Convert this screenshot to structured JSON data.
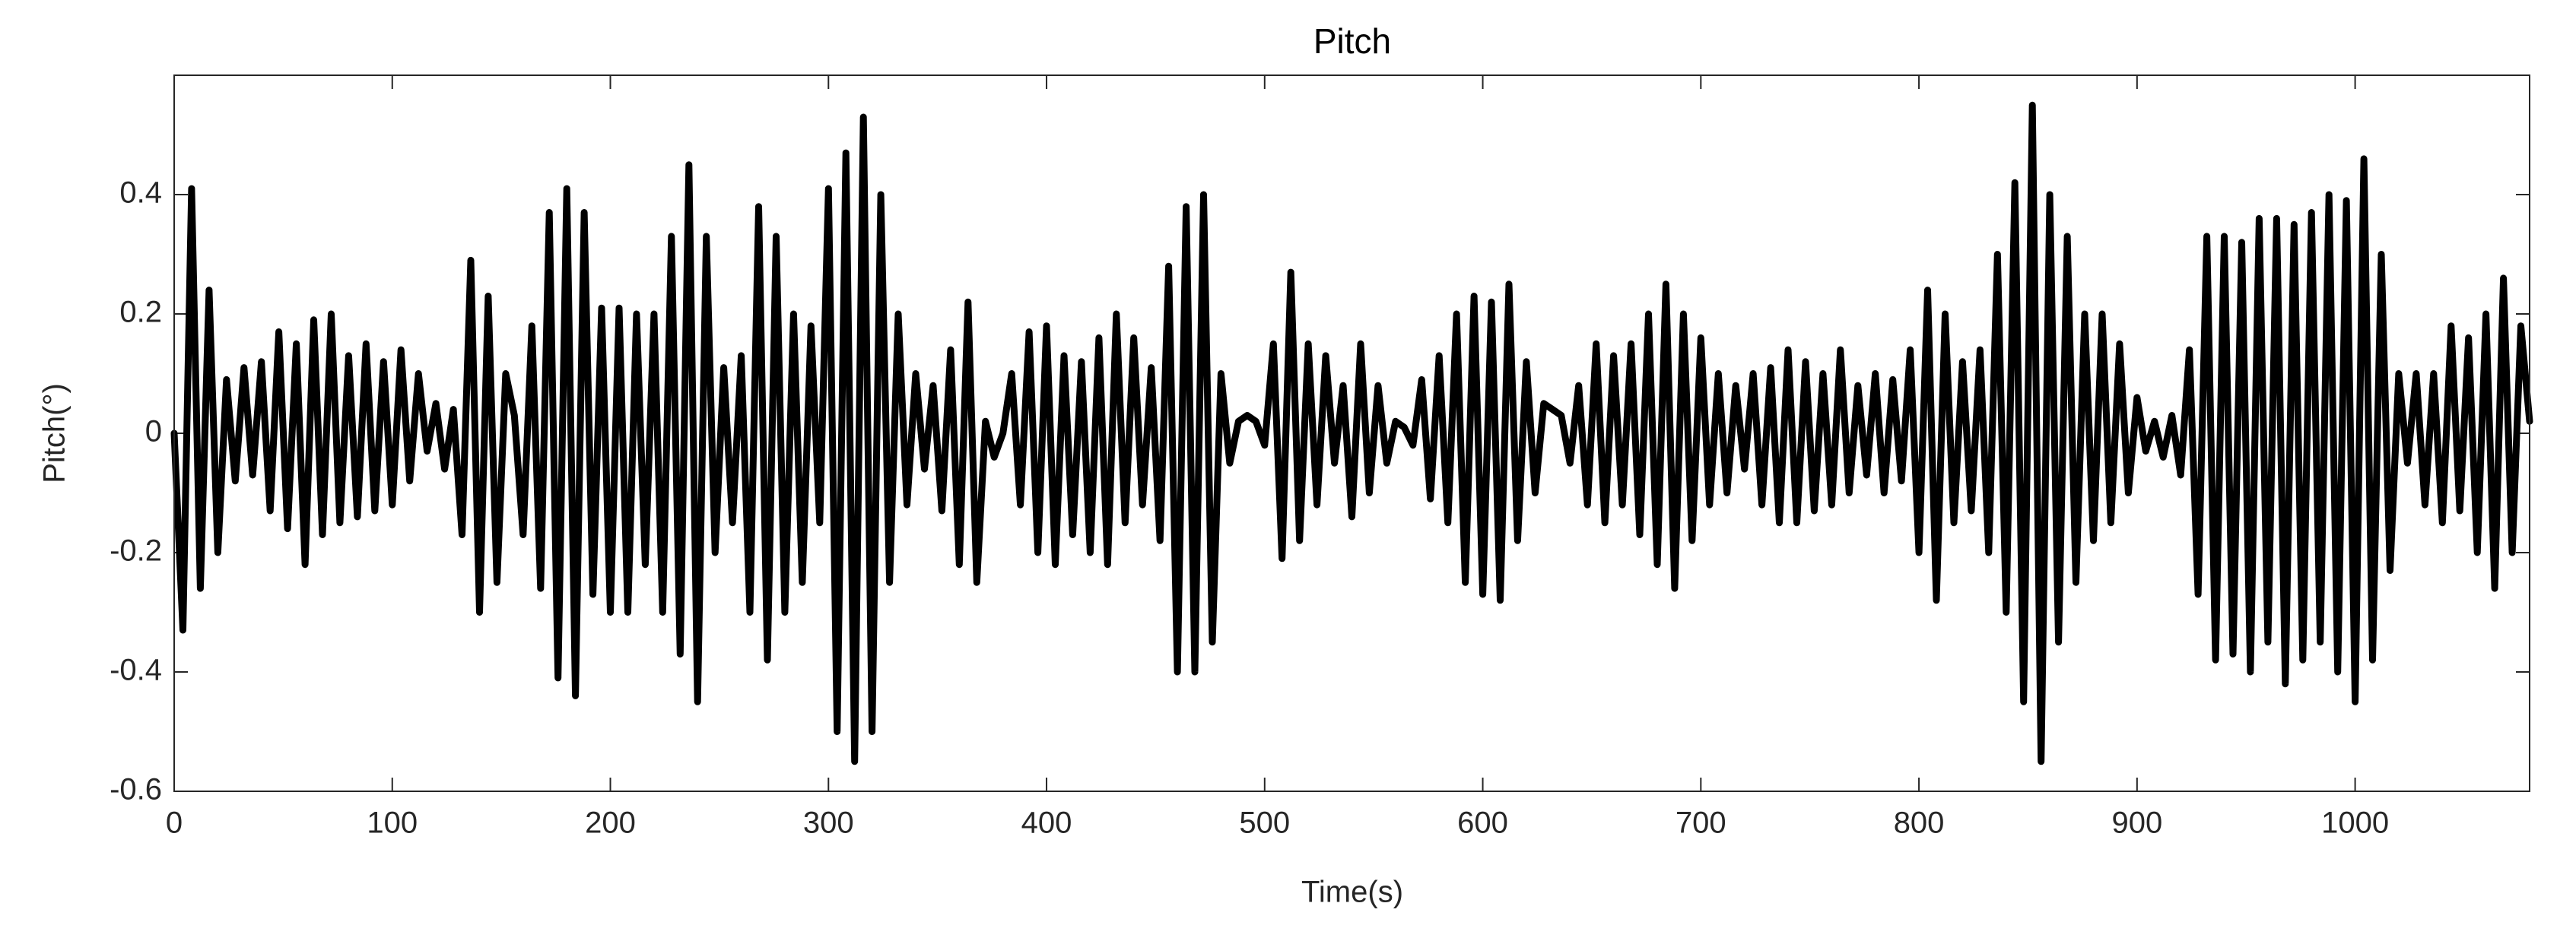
{
  "chart_data": {
    "type": "line",
    "title": "Pitch",
    "xlabel": "Time(s)",
    "ylabel": "Pitch(°)",
    "color": "#000000",
    "xlim": [
      0,
      1080
    ],
    "ylim": [
      -0.6,
      0.6
    ],
    "xticks": [
      0,
      100,
      200,
      300,
      400,
      500,
      600,
      700,
      800,
      900,
      1000
    ],
    "yticks": [
      -0.6,
      -0.4,
      -0.2,
      0,
      0.2,
      0.4
    ],
    "x": [
      0,
      4,
      8,
      12,
      16,
      20,
      24,
      28,
      32,
      36,
      40,
      44,
      48,
      52,
      56,
      60,
      64,
      68,
      72,
      76,
      80,
      84,
      88,
      92,
      96,
      100,
      104,
      108,
      112,
      116,
      120,
      124,
      128,
      132,
      136,
      140,
      144,
      148,
      152,
      156,
      160,
      164,
      168,
      172,
      176,
      180,
      184,
      188,
      192,
      196,
      200,
      204,
      208,
      212,
      216,
      220,
      224,
      228,
      232,
      236,
      240,
      244,
      248,
      252,
      256,
      260,
      264,
      268,
      272,
      276,
      280,
      284,
      288,
      292,
      296,
      300,
      304,
      308,
      312,
      316,
      320,
      324,
      328,
      332,
      336,
      340,
      344,
      348,
      352,
      356,
      360,
      364,
      368,
      372,
      376,
      380,
      384,
      388,
      392,
      396,
      400,
      404,
      408,
      412,
      416,
      420,
      424,
      428,
      432,
      436,
      440,
      444,
      448,
      452,
      456,
      460,
      464,
      468,
      472,
      476,
      480,
      484,
      488,
      492,
      496,
      500,
      504,
      508,
      512,
      516,
      520,
      524,
      528,
      532,
      536,
      540,
      544,
      548,
      552,
      556,
      560,
      564,
      568,
      572,
      576,
      580,
      584,
      588,
      592,
      596,
      600,
      604,
      608,
      612,
      616,
      620,
      624,
      628,
      632,
      636,
      640,
      644,
      648,
      652,
      656,
      660,
      664,
      668,
      672,
      676,
      680,
      684,
      688,
      692,
      696,
      700,
      704,
      708,
      712,
      716,
      720,
      724,
      728,
      732,
      736,
      740,
      744,
      748,
      752,
      756,
      760,
      764,
      768,
      772,
      776,
      780,
      784,
      788,
      792,
      796,
      800,
      804,
      808,
      812,
      816,
      820,
      824,
      828,
      832,
      836,
      840,
      844,
      848,
      852,
      856,
      860,
      864,
      868,
      872,
      876,
      880,
      884,
      888,
      892,
      896,
      900,
      904,
      908,
      912,
      916,
      920,
      924,
      928,
      932,
      936,
      940,
      944,
      948,
      952,
      956,
      960,
      964,
      968,
      972,
      976,
      980,
      984,
      988,
      992,
      996,
      1000,
      1004,
      1008,
      1012,
      1016,
      1020,
      1024,
      1028,
      1032,
      1036,
      1040,
      1044,
      1048,
      1052,
      1056,
      1060,
      1064,
      1068,
      1072,
      1076,
      1080
    ],
    "values": [
      0,
      -0.33,
      0.41,
      -0.26,
      0.24,
      -0.2,
      0.09,
      -0.08,
      0.11,
      -0.07,
      0.12,
      -0.13,
      0.17,
      -0.16,
      0.15,
      -0.22,
      0.19,
      -0.17,
      0.2,
      -0.15,
      0.13,
      -0.14,
      0.15,
      -0.13,
      0.12,
      -0.12,
      0.14,
      -0.08,
      0.1,
      -0.03,
      0.05,
      -0.06,
      0.04,
      -0.17,
      0.29,
      -0.3,
      0.23,
      -0.25,
      0.1,
      0.03,
      -0.17,
      0.18,
      -0.26,
      0.37,
      -0.41,
      0.41,
      -0.44,
      0.37,
      -0.27,
      0.21,
      -0.3,
      0.21,
      -0.3,
      0.2,
      -0.22,
      0.2,
      -0.3,
      0.33,
      -0.37,
      0.45,
      -0.45,
      0.33,
      -0.2,
      0.11,
      -0.15,
      0.13,
      -0.3,
      0.38,
      -0.38,
      0.33,
      -0.3,
      0.2,
      -0.25,
      0.18,
      -0.15,
      0.41,
      -0.5,
      0.47,
      -0.55,
      0.53,
      -0.5,
      0.4,
      -0.25,
      0.2,
      -0.12,
      0.1,
      -0.06,
      0.08,
      -0.13,
      0.14,
      -0.22,
      0.22,
      -0.25,
      0.02,
      -0.04,
      0,
      0.1,
      -0.12,
      0.17,
      -0.2,
      0.18,
      -0.22,
      0.13,
      -0.17,
      0.12,
      -0.2,
      0.16,
      -0.22,
      0.2,
      -0.15,
      0.16,
      -0.12,
      0.11,
      -0.18,
      0.28,
      -0.4,
      0.38,
      -0.4,
      0.4,
      -0.35,
      0.1,
      -0.05,
      0.02,
      0.03,
      0.02,
      -0.02,
      0.15,
      -0.21,
      0.27,
      -0.18,
      0.15,
      -0.12,
      0.13,
      -0.05,
      0.08,
      -0.14,
      0.15,
      -0.1,
      0.08,
      -0.05,
      0.02,
      0.01,
      -0.02,
      0.09,
      -0.11,
      0.13,
      -0.15,
      0.2,
      -0.25,
      0.23,
      -0.27,
      0.22,
      -0.28,
      0.25,
      -0.18,
      0.12,
      -0.1,
      0.05,
      0.04,
      0.03,
      -0.05,
      0.08,
      -0.12,
      0.15,
      -0.15,
      0.13,
      -0.12,
      0.15,
      -0.17,
      0.2,
      -0.22,
      0.25,
      -0.26,
      0.2,
      -0.18,
      0.16,
      -0.12,
      0.1,
      -0.1,
      0.08,
      -0.06,
      0.1,
      -0.12,
      0.11,
      -0.15,
      0.14,
      -0.15,
      0.12,
      -0.13,
      0.1,
      -0.12,
      0.14,
      -0.1,
      0.08,
      -0.07,
      0.1,
      -0.1,
      0.09,
      -0.08,
      0.14,
      -0.2,
      0.24,
      -0.28,
      0.2,
      -0.15,
      0.12,
      -0.13,
      0.14,
      -0.2,
      0.3,
      -0.3,
      0.42,
      -0.45,
      0.55,
      -0.55,
      0.4,
      -0.35,
      0.33,
      -0.25,
      0.2,
      -0.18,
      0.2,
      -0.15,
      0.15,
      -0.1,
      0.06,
      -0.03,
      0.02,
      -0.04,
      0.03,
      -0.07,
      0.14,
      -0.27,
      0.33,
      -0.38,
      0.33,
      -0.37,
      0.32,
      -0.4,
      0.36,
      -0.35,
      0.36,
      -0.42,
      0.35,
      -0.38,
      0.37,
      -0.35,
      0.4,
      -0.4,
      0.39,
      -0.45,
      0.46,
      -0.38,
      0.3,
      -0.23,
      0.1,
      -0.05,
      0.1,
      -0.12,
      0.1,
      -0.15,
      0.18,
      -0.13,
      0.16,
      -0.2,
      0.2,
      -0.26,
      0.26,
      -0.2,
      0.18,
      0.02
    ]
  }
}
